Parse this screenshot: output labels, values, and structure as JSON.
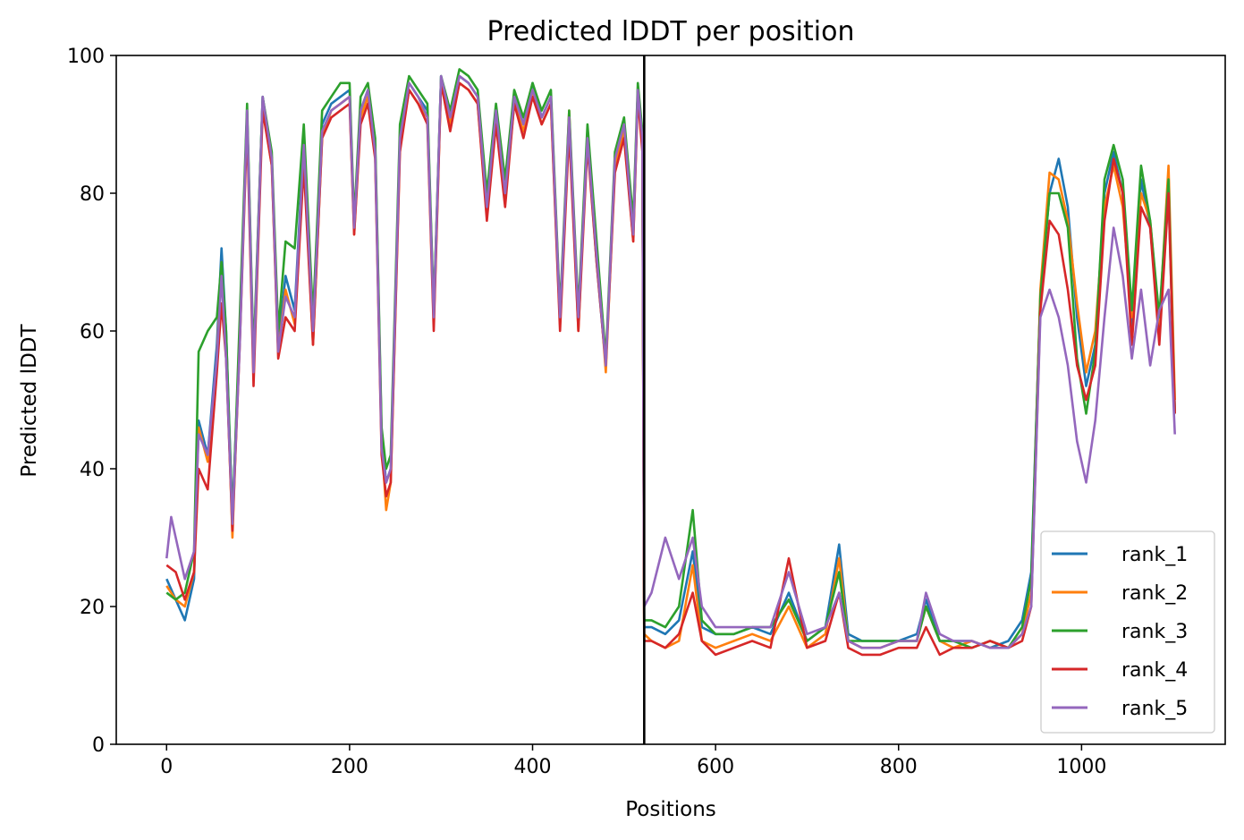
{
  "chart_data": {
    "type": "line",
    "title": "Predicted lDDT per position",
    "xlabel": "Positions",
    "ylabel": "Predicted lDDT",
    "xlim": [
      -55,
      1157
    ],
    "ylim": [
      0,
      100
    ],
    "xticks": [
      0,
      200,
      400,
      600,
      800,
      1000
    ],
    "yticks": [
      0,
      20,
      40,
      60,
      80,
      100
    ],
    "grid": false,
    "legend_position": "lower right",
    "vline_x": 522,
    "series": [
      {
        "name": "rank_1",
        "color": "#1f77b4",
        "x": [
          0,
          10,
          20,
          30,
          35,
          45,
          55,
          60,
          65,
          72,
          80,
          88,
          95,
          105,
          115,
          122,
          130,
          140,
          150,
          160,
          170,
          180,
          190,
          200,
          205,
          212,
          220,
          228,
          235,
          240,
          245,
          255,
          265,
          275,
          285,
          292,
          300,
          310,
          320,
          330,
          340,
          350,
          360,
          370,
          380,
          390,
          400,
          410,
          420,
          430,
          440,
          450,
          460,
          470,
          480,
          490,
          500,
          510,
          515,
          520,
          522,
          530,
          545,
          560,
          575,
          585,
          600,
          620,
          640,
          660,
          680,
          700,
          720,
          735,
          745,
          760,
          780,
          800,
          820,
          830,
          845,
          860,
          880,
          900,
          920,
          935,
          945,
          955,
          965,
          975,
          985,
          995,
          1005,
          1015,
          1025,
          1035,
          1045,
          1055,
          1065,
          1075,
          1085,
          1095,
          1102
        ],
        "y": [
          24,
          21,
          18,
          24,
          47,
          42,
          58,
          72,
          60,
          33,
          60,
          92,
          55,
          94,
          85,
          58,
          68,
          63,
          88,
          60,
          90,
          93,
          94,
          95,
          75,
          92,
          95,
          87,
          45,
          38,
          40,
          88,
          96,
          94,
          92,
          62,
          97,
          91,
          97,
          96,
          94,
          78,
          92,
          80,
          94,
          90,
          96,
          91,
          94,
          62,
          90,
          62,
          88,
          70,
          55,
          85,
          90,
          75,
          95,
          88,
          17,
          17,
          16,
          18,
          28,
          17,
          16,
          16,
          17,
          16,
          22,
          15,
          17,
          29,
          16,
          15,
          15,
          15,
          16,
          21,
          15,
          15,
          15,
          14,
          15,
          18,
          25,
          65,
          80,
          85,
          78,
          62,
          52,
          58,
          80,
          86,
          80,
          60,
          82,
          75,
          60,
          80,
          48
        ]
      },
      {
        "name": "rank_2",
        "color": "#ff7f0e",
        "x": [
          0,
          10,
          20,
          30,
          35,
          45,
          55,
          60,
          65,
          72,
          80,
          88,
          95,
          105,
          115,
          122,
          130,
          140,
          150,
          160,
          170,
          180,
          190,
          200,
          205,
          212,
          220,
          228,
          235,
          240,
          245,
          255,
          265,
          275,
          285,
          292,
          300,
          310,
          320,
          330,
          340,
          350,
          360,
          370,
          380,
          390,
          400,
          410,
          420,
          430,
          440,
          450,
          460,
          470,
          480,
          490,
          500,
          510,
          515,
          520,
          522,
          530,
          545,
          560,
          575,
          585,
          600,
          620,
          640,
          660,
          680,
          700,
          720,
          735,
          745,
          760,
          780,
          800,
          820,
          830,
          845,
          860,
          880,
          900,
          920,
          935,
          945,
          955,
          965,
          975,
          985,
          995,
          1005,
          1015,
          1025,
          1035,
          1045,
          1055,
          1065,
          1075,
          1085,
          1095,
          1102
        ],
        "y": [
          23,
          21,
          20,
          25,
          46,
          41,
          56,
          70,
          58,
          30,
          60,
          91,
          54,
          93,
          84,
          57,
          66,
          61,
          86,
          58,
          88,
          92,
          93,
          94,
          74,
          91,
          94,
          86,
          44,
          34,
          38,
          87,
          95,
          93,
          91,
          61,
          96,
          90,
          96,
          95,
          93,
          77,
          91,
          79,
          93,
          89,
          95,
          90,
          93,
          61,
          92,
          60,
          89,
          72,
          54,
          84,
          89,
          73,
          95,
          87,
          16,
          15,
          14,
          15,
          26,
          15,
          14,
          15,
          16,
          15,
          20,
          14,
          16,
          27,
          15,
          14,
          14,
          15,
          15,
          20,
          15,
          14,
          15,
          14,
          14,
          16,
          22,
          66,
          83,
          82,
          76,
          64,
          54,
          60,
          78,
          84,
          78,
          62,
          80,
          76,
          61,
          84,
          50
        ]
      },
      {
        "name": "rank_3",
        "color": "#2ca02c",
        "x": [
          0,
          10,
          20,
          30,
          35,
          45,
          55,
          60,
          65,
          72,
          80,
          88,
          95,
          105,
          115,
          122,
          130,
          140,
          150,
          160,
          170,
          180,
          190,
          200,
          205,
          212,
          220,
          228,
          235,
          240,
          245,
          255,
          265,
          275,
          285,
          292,
          300,
          310,
          320,
          330,
          340,
          350,
          360,
          370,
          380,
          390,
          400,
          410,
          420,
          430,
          440,
          450,
          460,
          470,
          480,
          490,
          500,
          510,
          515,
          520,
          522,
          530,
          545,
          560,
          575,
          585,
          600,
          620,
          640,
          660,
          680,
          700,
          720,
          735,
          745,
          760,
          780,
          800,
          820,
          830,
          845,
          860,
          880,
          900,
          920,
          935,
          945,
          955,
          965,
          975,
          985,
          995,
          1005,
          1015,
          1025,
          1035,
          1045,
          1055,
          1065,
          1075,
          1085,
          1095,
          1102
        ],
        "y": [
          22,
          21,
          22,
          28,
          57,
          60,
          62,
          70,
          60,
          32,
          62,
          93,
          56,
          94,
          86,
          60,
          73,
          72,
          90,
          62,
          92,
          94,
          96,
          96,
          76,
          94,
          96,
          88,
          46,
          40,
          42,
          90,
          97,
          95,
          93,
          63,
          97,
          92,
          98,
          97,
          95,
          80,
          93,
          82,
          95,
          91,
          96,
          92,
          95,
          63,
          92,
          63,
          90,
          73,
          56,
          86,
          91,
          76,
          96,
          89,
          18,
          18,
          17,
          20,
          34,
          18,
          16,
          16,
          17,
          17,
          21,
          15,
          17,
          25,
          15,
          15,
          15,
          15,
          15,
          20,
          15,
          15,
          14,
          15,
          14,
          17,
          24,
          65,
          80,
          80,
          75,
          56,
          48,
          57,
          82,
          87,
          82,
          63,
          84,
          76,
          62,
          82,
          48
        ]
      },
      {
        "name": "rank_4",
        "color": "#d62728",
        "x": [
          0,
          10,
          20,
          30,
          35,
          45,
          55,
          60,
          65,
          72,
          80,
          88,
          95,
          105,
          115,
          122,
          130,
          140,
          150,
          160,
          170,
          180,
          190,
          200,
          205,
          212,
          220,
          228,
          235,
          240,
          245,
          255,
          265,
          275,
          285,
          292,
          300,
          310,
          320,
          330,
          340,
          350,
          360,
          370,
          380,
          390,
          400,
          410,
          420,
          430,
          440,
          450,
          460,
          470,
          480,
          490,
          500,
          510,
          515,
          520,
          522,
          530,
          545,
          560,
          575,
          585,
          600,
          620,
          640,
          660,
          680,
          700,
          720,
          735,
          745,
          760,
          780,
          800,
          820,
          830,
          845,
          860,
          880,
          900,
          920,
          935,
          945,
          955,
          965,
          975,
          985,
          995,
          1005,
          1015,
          1025,
          1035,
          1045,
          1055,
          1065,
          1075,
          1085,
          1095,
          1102
        ],
        "y": [
          26,
          25,
          21,
          25,
          40,
          37,
          54,
          64,
          56,
          31,
          58,
          90,
          52,
          92,
          84,
          56,
          62,
          60,
          84,
          58,
          88,
          91,
          92,
          93,
          74,
          90,
          93,
          85,
          42,
          36,
          38,
          86,
          95,
          93,
          90,
          60,
          96,
          89,
          96,
          95,
          93,
          76,
          90,
          78,
          93,
          88,
          94,
          90,
          93,
          60,
          89,
          60,
          87,
          70,
          55,
          83,
          88,
          73,
          94,
          86,
          15,
          15,
          14,
          16,
          22,
          15,
          13,
          14,
          15,
          14,
          27,
          14,
          15,
          22,
          14,
          13,
          13,
          14,
          14,
          17,
          13,
          14,
          14,
          15,
          14,
          15,
          20,
          63,
          76,
          74,
          66,
          55,
          50,
          55,
          76,
          85,
          80,
          58,
          78,
          75,
          58,
          80,
          48
        ]
      },
      {
        "name": "rank_5",
        "color": "#9467bd",
        "x": [
          0,
          5,
          10,
          20,
          30,
          35,
          45,
          55,
          60,
          65,
          72,
          80,
          88,
          95,
          105,
          115,
          122,
          130,
          140,
          150,
          160,
          170,
          180,
          190,
          200,
          205,
          212,
          220,
          228,
          235,
          240,
          245,
          255,
          265,
          275,
          285,
          292,
          300,
          310,
          320,
          330,
          340,
          350,
          360,
          370,
          380,
          390,
          400,
          410,
          420,
          430,
          440,
          450,
          460,
          470,
          480,
          490,
          500,
          510,
          515,
          520,
          522,
          530,
          545,
          560,
          575,
          585,
          600,
          620,
          640,
          660,
          680,
          700,
          720,
          735,
          745,
          760,
          780,
          800,
          820,
          830,
          845,
          860,
          880,
          900,
          920,
          935,
          945,
          955,
          965,
          975,
          985,
          995,
          1005,
          1015,
          1025,
          1035,
          1045,
          1055,
          1065,
          1075,
          1085,
          1095,
          1102
        ],
        "y": [
          27,
          33,
          30,
          24,
          28,
          45,
          42,
          56,
          68,
          56,
          32,
          58,
          92,
          54,
          94,
          85,
          57,
          65,
          62,
          87,
          60,
          89,
          92,
          93,
          94,
          75,
          92,
          95,
          86,
          43,
          38,
          40,
          88,
          96,
          94,
          91,
          62,
          97,
          91,
          97,
          96,
          94,
          78,
          92,
          80,
          94,
          90,
          95,
          91,
          94,
          62,
          91,
          62,
          88,
          71,
          55,
          85,
          90,
          74,
          95,
          88,
          20,
          22,
          30,
          24,
          30,
          20,
          17,
          17,
          17,
          17,
          25,
          16,
          17,
          22,
          15,
          14,
          14,
          15,
          15,
          22,
          16,
          15,
          15,
          14,
          14,
          16,
          20,
          62,
          66,
          62,
          55,
          44,
          38,
          47,
          62,
          75,
          68,
          56,
          66,
          55,
          63,
          66,
          45
        ]
      }
    ]
  }
}
